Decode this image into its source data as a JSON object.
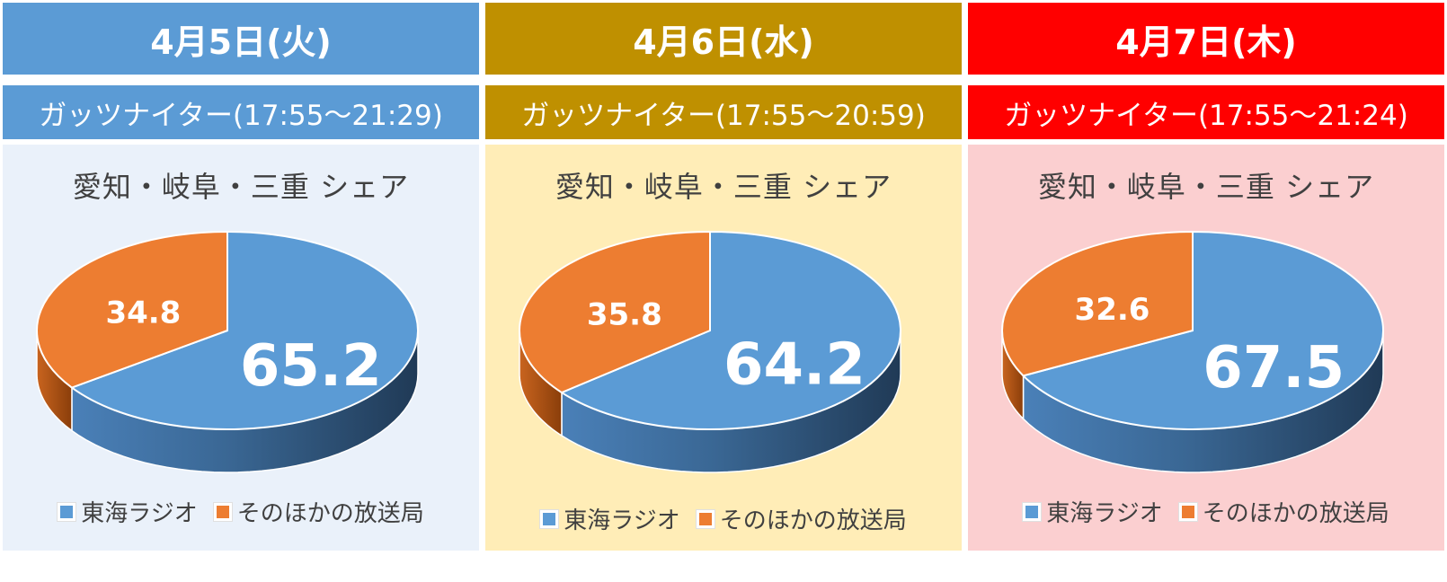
{
  "colors": {
    "tokai": "#5b9bd5",
    "tokai_side_dark": "#203a56",
    "others": "#ed7d31",
    "others_side_dark": "#8a3e0a"
  },
  "legend": {
    "tokai_label": "東海ラジオ",
    "others_label": "そのほかの放送局"
  },
  "chart_data": [
    {
      "type": "pie",
      "date": "4月5日(火)",
      "program": "ガッツナイター(17:55〜21:29)",
      "title": "愛知・岐阜・三重 シェア",
      "categories": [
        "東海ラジオ",
        "そのほかの放送局"
      ],
      "values": [
        65.2,
        34.8
      ],
      "labels": [
        "65.2",
        "34.8"
      ],
      "header_color": "#5b9bd5",
      "panel_color": "#eaf1fa"
    },
    {
      "type": "pie",
      "date": "4月6日(水)",
      "program": "ガッツナイター(17:55〜20:59)",
      "title": "愛知・岐阜・三重 シェア",
      "categories": [
        "東海ラジオ",
        "そのほかの放送局"
      ],
      "values": [
        64.2,
        35.8
      ],
      "labels": [
        "64.2",
        "35.8"
      ],
      "header_color": "#bf9000",
      "panel_color": "#ffedb7"
    },
    {
      "type": "pie",
      "date": "4月7日(木)",
      "program": "ガッツナイター(17:55〜21:24)",
      "title": "愛知・岐阜・三重 シェア",
      "categories": [
        "東海ラジオ",
        "そのほかの放送局"
      ],
      "values": [
        67.5,
        32.6
      ],
      "labels": [
        "67.5",
        "32.6"
      ],
      "header_color": "#ff0000",
      "panel_color": "#fbcfd0"
    }
  ]
}
